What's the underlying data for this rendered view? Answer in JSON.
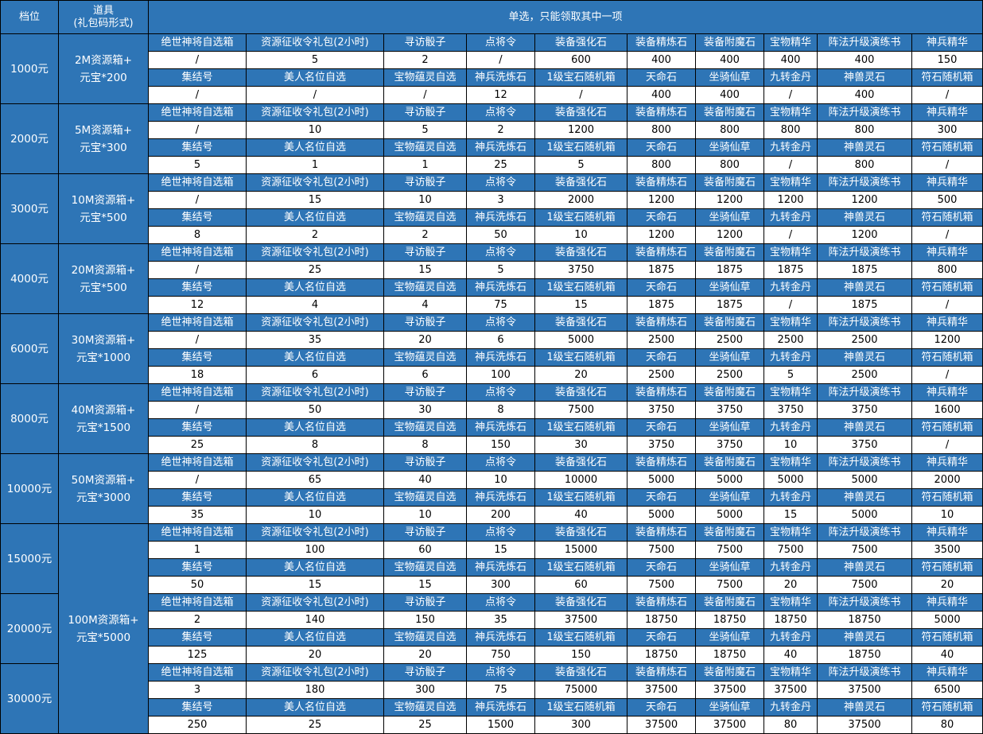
{
  "header": {
    "tier": "档位",
    "prop_line1": "道具",
    "prop_line2": "(礼包码形式)",
    "choose": "单选，只能领取其中一项"
  },
  "colors": {
    "header_bg": "#2e75b6",
    "header_text": "#ffffff",
    "border": "#000000"
  },
  "labels_a": [
    "绝世神将自选箱",
    "资源征收令礼包(2小时)",
    "寻访骰子",
    "点将令",
    "装备强化石",
    "装备精炼石",
    "装备附魔石",
    "宝物精华",
    "阵法升级演练书",
    "神兵精华"
  ],
  "labels_b": [
    "集结号",
    "美人名位自选",
    "宝物蕴灵自选",
    "神兵洗炼石",
    "1级宝石随机箱",
    "天命石",
    "坐骑仙草",
    "九转金丹",
    "神兽灵石",
    "符石随机箱"
  ],
  "tiers": [
    {
      "tier": "1000元",
      "prop1": "2M资源箱+",
      "prop2": "元宝*200",
      "va": [
        "/",
        "5",
        "2",
        "/",
        "600",
        "400",
        "400",
        "400",
        "400",
        "150"
      ],
      "vb": [
        "/",
        "/",
        "/",
        "12",
        "/",
        "400",
        "400",
        "/",
        "400",
        "/"
      ]
    },
    {
      "tier": "2000元",
      "prop1": "5M资源箱+",
      "prop2": "元宝*300",
      "va": [
        "/",
        "10",
        "5",
        "2",
        "1200",
        "800",
        "800",
        "800",
        "800",
        "300"
      ],
      "vb": [
        "5",
        "1",
        "1",
        "25",
        "5",
        "800",
        "800",
        "/",
        "800",
        "/"
      ]
    },
    {
      "tier": "3000元",
      "prop1": "10M资源箱+",
      "prop2": "元宝*500",
      "va": [
        "/",
        "15",
        "10",
        "3",
        "2000",
        "1200",
        "1200",
        "1200",
        "1200",
        "500"
      ],
      "vb": [
        "8",
        "2",
        "2",
        "50",
        "10",
        "1200",
        "1200",
        "/",
        "1200",
        "/"
      ]
    },
    {
      "tier": "4000元",
      "prop1": "20M资源箱+",
      "prop2": "元宝*500",
      "va": [
        "/",
        "25",
        "15",
        "5",
        "3750",
        "1875",
        "1875",
        "1875",
        "1875",
        "800"
      ],
      "vb": [
        "12",
        "4",
        "4",
        "75",
        "15",
        "1875",
        "1875",
        "/",
        "1875",
        "/"
      ]
    },
    {
      "tier": "6000元",
      "prop1": "30M资源箱+",
      "prop2": "元宝*1000",
      "va": [
        "/",
        "35",
        "20",
        "6",
        "5000",
        "2500",
        "2500",
        "2500",
        "2500",
        "1200"
      ],
      "vb": [
        "18",
        "6",
        "6",
        "100",
        "20",
        "2500",
        "2500",
        "5",
        "2500",
        "/"
      ]
    },
    {
      "tier": "8000元",
      "prop1": "40M资源箱+",
      "prop2": "元宝*1500",
      "va": [
        "/",
        "50",
        "30",
        "8",
        "7500",
        "3750",
        "3750",
        "3750",
        "3750",
        "1600"
      ],
      "vb": [
        "25",
        "8",
        "8",
        "150",
        "30",
        "3750",
        "3750",
        "10",
        "3750",
        "/"
      ]
    },
    {
      "tier": "10000元",
      "prop1": "50M资源箱+",
      "prop2": "元宝*3000",
      "va": [
        "/",
        "65",
        "40",
        "10",
        "10000",
        "5000",
        "5000",
        "5000",
        "5000",
        "2000"
      ],
      "vb": [
        "35",
        "10",
        "10",
        "200",
        "40",
        "5000",
        "5000",
        "15",
        "5000",
        "10"
      ]
    },
    {
      "tier": "15000元",
      "prop1": "100M资源箱+",
      "prop2": "元宝*5000",
      "va": [
        "1",
        "100",
        "60",
        "15",
        "15000",
        "7500",
        "7500",
        "7500",
        "7500",
        "3500"
      ],
      "vb": [
        "50",
        "15",
        "15",
        "300",
        "60",
        "7500",
        "7500",
        "20",
        "7500",
        "20"
      ]
    },
    {
      "tier": "20000元",
      "prop1": "",
      "prop2": "",
      "va": [
        "2",
        "140",
        "150",
        "35",
        "37500",
        "18750",
        "18750",
        "18750",
        "18750",
        "5000"
      ],
      "vb": [
        "125",
        "20",
        "20",
        "750",
        "150",
        "18750",
        "18750",
        "40",
        "18750",
        "40"
      ]
    },
    {
      "tier": "30000元",
      "prop1": "",
      "prop2": "",
      "va": [
        "3",
        "180",
        "300",
        "75",
        "75000",
        "37500",
        "37500",
        "37500",
        "37500",
        "6500"
      ],
      "vb": [
        "250",
        "25",
        "25",
        "1500",
        "300",
        "37500",
        "37500",
        "80",
        "37500",
        "80"
      ]
    }
  ]
}
